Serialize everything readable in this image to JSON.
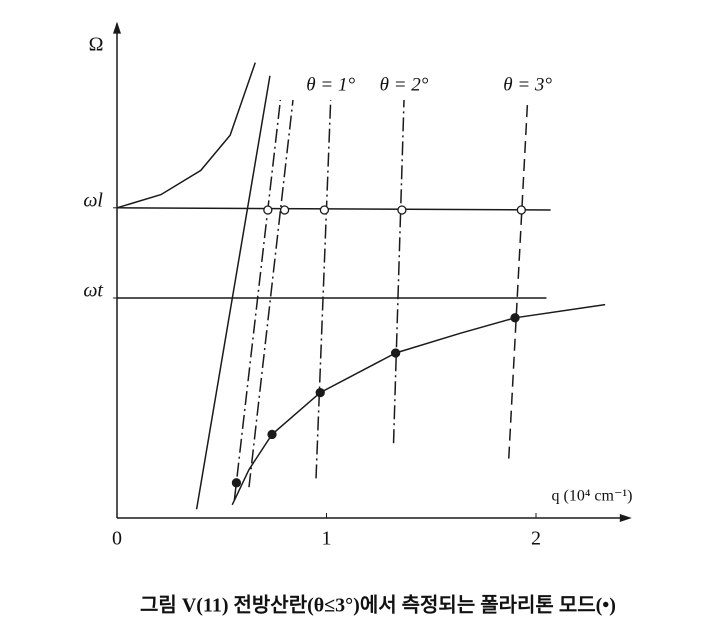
{
  "chart_data": {
    "type": "line",
    "title": "그림 V(11) 전방산란(θ≤3°)에서 측정되는 폴라리톤 모드(•)",
    "x_label": "q (10⁴ cm⁻¹)",
    "y_label": "Ω",
    "xlim": [
      0,
      2.4
    ],
    "ylim": [
      0,
      2.22
    ],
    "xticks": [
      0,
      1,
      2
    ],
    "yticks": [
      {
        "value": 1.0,
        "label": "ωt"
      },
      {
        "value": 1.41,
        "label": "ωl"
      }
    ],
    "color": "#1a1a1a",
    "series": [
      {
        "style": "solid",
        "x": [
          0.55,
          0.63,
          0.74,
          0.97,
          1.33,
          1.64,
          1.9,
          2.33
        ],
        "values": [
          0.06,
          0.22,
          0.38,
          0.57,
          0.75,
          0.84,
          0.91,
          0.97
        ]
      },
      {
        "style": "solid",
        "x": [
          0,
          0.21,
          0.4,
          0.54,
          0.66
        ],
        "values": [
          1.41,
          1.47,
          1.58,
          1.74,
          2.07
        ]
      },
      {
        "style": "solid",
        "x": [
          0.38,
          0.73
        ],
        "values": [
          0.04,
          2.01
        ]
      },
      {
        "style": "solid",
        "x": [
          0,
          2.07
        ],
        "values": [
          1.41,
          1.4
        ]
      },
      {
        "style": "solid",
        "x": [
          0,
          2.05
        ],
        "values": [
          1.0,
          1.0
        ]
      },
      {
        "style": "dashdot",
        "x": [
          0.56,
          0.78
        ],
        "values": [
          0.08,
          1.9
        ]
      },
      {
        "style": "dashdot",
        "x": [
          0.63,
          0.84
        ],
        "values": [
          0.14,
          1.9
        ]
      },
      {
        "style": "dashdot",
        "label": "θ = 1°",
        "x": [
          0.95,
          1.02
        ],
        "values": [
          0.18,
          1.9
        ]
      },
      {
        "style": "dashdot",
        "label": "θ = 2°",
        "x": [
          1.32,
          1.37
        ],
        "values": [
          0.34,
          1.9
        ]
      },
      {
        "style": "dashed",
        "label": "θ = 3°",
        "x": [
          1.87,
          1.96
        ],
        "values": [
          0.27,
          1.9
        ]
      },
      {
        "style": "filled-points",
        "x": [
          0.57,
          0.74,
          0.97,
          1.33,
          1.9
        ],
        "values": [
          0.16,
          0.38,
          0.57,
          0.75,
          0.91
        ]
      },
      {
        "style": "open-points",
        "x": [
          0.72,
          0.8,
          0.99,
          1.36,
          1.93
        ],
        "values": [
          1.4,
          1.4,
          1.4,
          1.4,
          1.4
        ]
      }
    ]
  }
}
